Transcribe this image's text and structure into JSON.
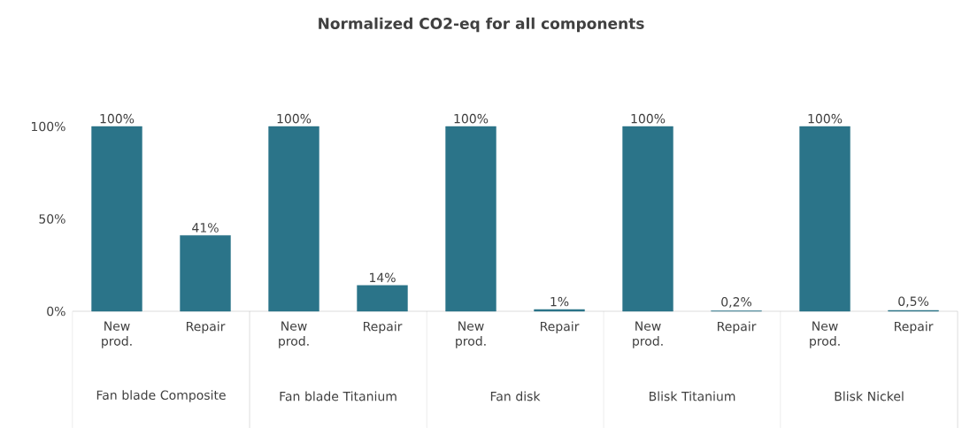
{
  "chart_data": {
    "type": "bar",
    "title": "Normalized CO2-eq for all components",
    "categories": [
      "New prod.",
      "Repair",
      "New prod.",
      "Repair",
      "New prod.",
      "Repair",
      "New prod.",
      "Repair",
      "New prod.",
      "Repair"
    ],
    "values": [
      100,
      41,
      100,
      14,
      100,
      1,
      100,
      0.2,
      100,
      0.5
    ],
    "value_labels": [
      "100%",
      "41%",
      "100%",
      "14%",
      "100%",
      "1%",
      "100%",
      "0,2%",
      "100%",
      "0,5%"
    ],
    "color": "#2b7489",
    "ylim": [
      0,
      100
    ],
    "yticks": [
      {
        "value": 0,
        "label": "0%"
      },
      {
        "value": 50,
        "label": "50%"
      },
      {
        "value": 100,
        "label": "100%"
      }
    ],
    "annotations": [
      "Fan blade Composite",
      "Fan blade Titanium",
      "Fan disk",
      "Blisk Titanium",
      "Blisk Nickel"
    ]
  }
}
